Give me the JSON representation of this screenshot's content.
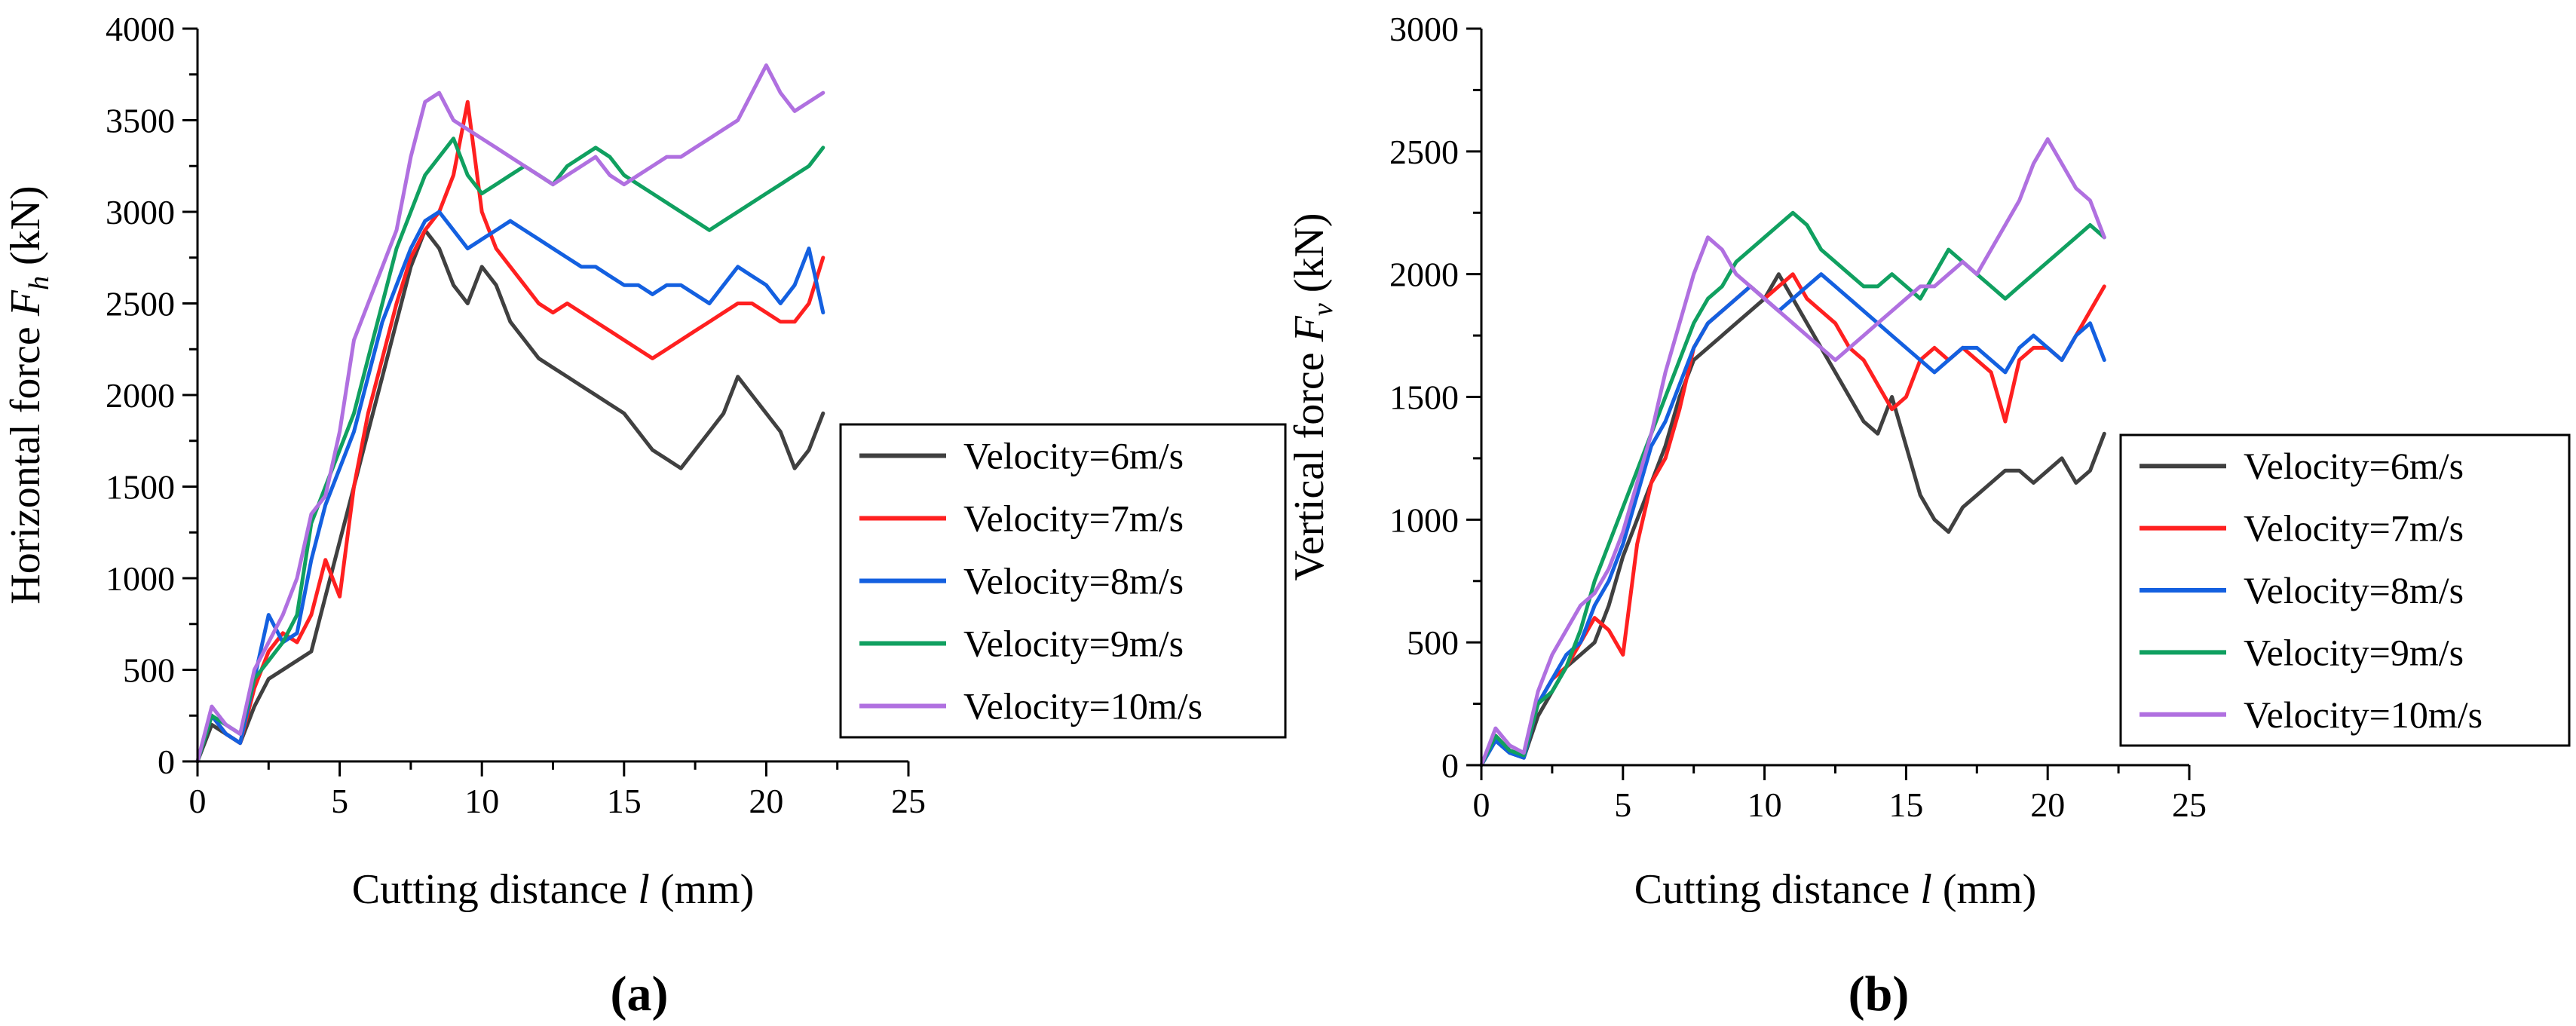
{
  "chart_data": [
    {
      "type": "line",
      "panel_label": "(a)",
      "xlabel": "Cutting distance l (mm)",
      "xlabel_parts": {
        "prefix": "Cutting distance ",
        "var": "l",
        "suffix": " (mm)"
      },
      "ylabel": "Horizontal force F_h (kN)",
      "ylabel_parts": {
        "prefix": "Horizontal force ",
        "var": "F",
        "sub": "h",
        "suffix": " (kN)"
      },
      "xlim": [
        0,
        25
      ],
      "ylim": [
        0,
        4000
      ],
      "xticks": [
        0,
        5,
        10,
        15,
        20,
        25
      ],
      "yticks": [
        0,
        500,
        1000,
        1500,
        2000,
        2500,
        3000,
        3500,
        4000
      ],
      "grid": false,
      "legend_position": "right-middle",
      "series": [
        {
          "name": "Velocity=6m/s",
          "color": "#404040",
          "x": [
            0,
            0.5,
            1,
            1.5,
            2,
            2.5,
            3,
            3.5,
            4,
            4.5,
            5,
            5.5,
            6,
            6.5,
            7,
            7.5,
            8,
            8.5,
            9,
            9.5,
            10,
            10.5,
            11,
            11.5,
            12,
            12.5,
            13,
            13.5,
            14,
            14.5,
            15,
            15.5,
            16,
            16.5,
            17,
            17.5,
            18,
            18.5,
            19,
            19.5,
            20,
            20.5,
            21,
            21.5,
            22
          ],
          "y": [
            0,
            200,
            150,
            100,
            300,
            450,
            500,
            550,
            600,
            900,
            1200,
            1500,
            1800,
            2100,
            2400,
            2700,
            2900,
            2800,
            2600,
            2500,
            2700,
            2600,
            2400,
            2300,
            2200,
            2150,
            2100,
            2050,
            2000,
            1950,
            1900,
            1800,
            1700,
            1650,
            1600,
            1700,
            1800,
            1900,
            2100,
            2000,
            1900,
            1800,
            1600,
            1700,
            1900
          ]
        },
        {
          "name": "Velocity=7m/s",
          "color": "#ff2020",
          "x": [
            0,
            0.5,
            1,
            1.5,
            2,
            2.5,
            3,
            3.5,
            4,
            4.5,
            5,
            5.5,
            6,
            6.5,
            7,
            7.5,
            8,
            8.5,
            9,
            9.5,
            10,
            10.5,
            11,
            11.5,
            12,
            12.5,
            13,
            13.5,
            14,
            14.5,
            15,
            15.5,
            16,
            16.5,
            17,
            17.5,
            18,
            18.5,
            19,
            19.5,
            20,
            20.5,
            21,
            21.5,
            22
          ],
          "y": [
            0,
            250,
            150,
            100,
            400,
            600,
            700,
            650,
            800,
            1100,
            900,
            1500,
            1900,
            2200,
            2500,
            2750,
            2900,
            3000,
            3200,
            3600,
            3000,
            2800,
            2700,
            2600,
            2500,
            2450,
            2500,
            2450,
            2400,
            2350,
            2300,
            2250,
            2200,
            2250,
            2300,
            2350,
            2400,
            2450,
            2500,
            2500,
            2450,
            2400,
            2400,
            2500,
            2750
          ]
        },
        {
          "name": "Velocity=8m/s",
          "color": "#1460e0",
          "x": [
            0,
            0.5,
            1,
            1.5,
            2,
            2.5,
            3,
            3.5,
            4,
            4.5,
            5,
            5.5,
            6,
            6.5,
            7,
            7.5,
            8,
            8.5,
            9,
            9.5,
            10,
            10.5,
            11,
            11.5,
            12,
            12.5,
            13,
            13.5,
            14,
            14.5,
            15,
            15.5,
            16,
            16.5,
            17,
            17.5,
            18,
            18.5,
            19,
            19.5,
            20,
            20.5,
            21,
            21.5,
            22
          ],
          "y": [
            0,
            250,
            150,
            100,
            450,
            800,
            650,
            700,
            1100,
            1400,
            1600,
            1800,
            2100,
            2400,
            2600,
            2800,
            2950,
            3000,
            2900,
            2800,
            2850,
            2900,
            2950,
            2900,
            2850,
            2800,
            2750,
            2700,
            2700,
            2650,
            2600,
            2600,
            2550,
            2600,
            2600,
            2550,
            2500,
            2600,
            2700,
            2650,
            2600,
            2500,
            2600,
            2800,
            2450
          ]
        },
        {
          "name": "Velocity=9m/s",
          "color": "#10a060",
          "x": [
            0,
            0.5,
            1,
            1.5,
            2,
            2.5,
            3,
            3.5,
            4,
            4.5,
            5,
            5.5,
            6,
            6.5,
            7,
            7.5,
            8,
            8.5,
            9,
            9.5,
            10,
            10.5,
            11,
            11.5,
            12,
            12.5,
            13,
            13.5,
            14,
            14.5,
            15,
            15.5,
            16,
            16.5,
            17,
            17.5,
            18,
            18.5,
            19,
            19.5,
            20,
            20.5,
            21,
            21.5,
            22
          ],
          "y": [
            0,
            250,
            200,
            150,
            450,
            550,
            650,
            800,
            1300,
            1500,
            1700,
            1900,
            2200,
            2500,
            2800,
            3000,
            3200,
            3300,
            3400,
            3200,
            3100,
            3150,
            3200,
            3250,
            3200,
            3150,
            3250,
            3300,
            3350,
            3300,
            3200,
            3150,
            3100,
            3050,
            3000,
            2950,
            2900,
            2950,
            3000,
            3050,
            3100,
            3150,
            3200,
            3250,
            3350
          ]
        },
        {
          "name": "Velocity=10m/s",
          "color": "#b070e0",
          "x": [
            0,
            0.5,
            1,
            1.5,
            2,
            2.5,
            3,
            3.5,
            4,
            4.5,
            5,
            5.5,
            6,
            6.5,
            7,
            7.5,
            8,
            8.5,
            9,
            9.5,
            10,
            10.5,
            11,
            11.5,
            12,
            12.5,
            13,
            13.5,
            14,
            14.5,
            15,
            15.5,
            16,
            16.5,
            17,
            17.5,
            18,
            18.5,
            19,
            19.5,
            20,
            20.5,
            21,
            21.5,
            22
          ],
          "y": [
            0,
            300,
            200,
            150,
            500,
            650,
            800,
            1000,
            1350,
            1450,
            1800,
            2300,
            2500,
            2700,
            2900,
            3300,
            3600,
            3650,
            3500,
            3450,
            3400,
            3350,
            3300,
            3250,
            3200,
            3150,
            3200,
            3250,
            3300,
            3200,
            3150,
            3200,
            3250,
            3300,
            3300,
            3350,
            3400,
            3450,
            3500,
            3650,
            3800,
            3650,
            3550,
            3600,
            3650
          ]
        }
      ],
      "legend": [
        "Velocity=6m/s",
        "Velocity=7m/s",
        "Velocity=8m/s",
        "Velocity=9m/s",
        "Velocity=10m/s"
      ]
    },
    {
      "type": "line",
      "panel_label": "(b)",
      "xlabel": "Cutting distance l (mm)",
      "xlabel_parts": {
        "prefix": "Cutting distance ",
        "var": "l",
        "suffix": " (mm)"
      },
      "ylabel": "Vertical force F_v (kN)",
      "ylabel_parts": {
        "prefix": "Vertical force ",
        "var": "F",
        "sub": "v",
        "suffix": " (kN)"
      },
      "xlim": [
        0,
        25
      ],
      "ylim": [
        0,
        3000
      ],
      "xticks": [
        0,
        5,
        10,
        15,
        20,
        25
      ],
      "yticks": [
        0,
        500,
        1000,
        1500,
        2000,
        2500,
        3000
      ],
      "grid": false,
      "legend_position": "right-middle",
      "series": [
        {
          "name": "Velocity=6m/s",
          "color": "#404040",
          "x": [
            0,
            0.5,
            1,
            1.5,
            2,
            2.5,
            3,
            3.5,
            4,
            4.5,
            5,
            5.5,
            6,
            6.5,
            7,
            7.5,
            8,
            8.5,
            9,
            9.5,
            10,
            10.5,
            11,
            11.5,
            12,
            12.5,
            13,
            13.5,
            14,
            14.5,
            15,
            15.5,
            16,
            16.5,
            17,
            17.5,
            18,
            18.5,
            19,
            19.5,
            20,
            20.5,
            21,
            21.5,
            22
          ],
          "y": [
            0,
            100,
            50,
            30,
            200,
            300,
            400,
            450,
            500,
            650,
            850,
            1000,
            1150,
            1300,
            1500,
            1650,
            1700,
            1750,
            1800,
            1850,
            1900,
            2000,
            1900,
            1800,
            1700,
            1600,
            1500,
            1400,
            1350,
            1500,
            1300,
            1100,
            1000,
            950,
            1050,
            1100,
            1150,
            1200,
            1200,
            1150,
            1200,
            1250,
            1150,
            1200,
            1350
          ]
        },
        {
          "name": "Velocity=7m/s",
          "color": "#ff2020",
          "x": [
            0,
            0.5,
            1,
            1.5,
            2,
            2.5,
            3,
            3.5,
            4,
            4.5,
            5,
            5.5,
            6,
            6.5,
            7,
            7.5,
            8,
            8.5,
            9,
            9.5,
            10,
            10.5,
            11,
            11.5,
            12,
            12.5,
            13,
            13.5,
            14,
            14.5,
            15,
            15.5,
            16,
            16.5,
            17,
            17.5,
            18,
            18.5,
            19,
            19.5,
            20,
            20.5,
            21,
            21.5,
            22
          ],
          "y": [
            0,
            120,
            60,
            40,
            250,
            350,
            400,
            500,
            600,
            550,
            450,
            900,
            1150,
            1250,
            1450,
            1700,
            1800,
            1850,
            1900,
            1950,
            1900,
            1950,
            2000,
            1900,
            1850,
            1800,
            1700,
            1650,
            1550,
            1450,
            1500,
            1650,
            1700,
            1650,
            1700,
            1650,
            1600,
            1400,
            1650,
            1700,
            1700,
            1650,
            1750,
            1850,
            1950
          ]
        },
        {
          "name": "Velocity=8m/s",
          "color": "#1460e0",
          "x": [
            0,
            0.5,
            1,
            1.5,
            2,
            2.5,
            3,
            3.5,
            4,
            4.5,
            5,
            5.5,
            6,
            6.5,
            7,
            7.5,
            8,
            8.5,
            9,
            9.5,
            10,
            10.5,
            11,
            11.5,
            12,
            12.5,
            13,
            13.5,
            14,
            14.5,
            15,
            15.5,
            16,
            16.5,
            17,
            17.5,
            18,
            18.5,
            19,
            19.5,
            20,
            20.5,
            21,
            21.5,
            22
          ],
          "y": [
            0,
            100,
            50,
            30,
            250,
            350,
            450,
            500,
            650,
            750,
            900,
            1100,
            1300,
            1400,
            1550,
            1700,
            1800,
            1850,
            1900,
            1950,
            1900,
            1850,
            1900,
            1950,
            2000,
            1950,
            1900,
            1850,
            1800,
            1750,
            1700,
            1650,
            1600,
            1650,
            1700,
            1700,
            1650,
            1600,
            1700,
            1750,
            1700,
            1650,
            1750,
            1800,
            1650
          ]
        },
        {
          "name": "Velocity=9m/s",
          "color": "#10a060",
          "x": [
            0,
            0.5,
            1,
            1.5,
            2,
            2.5,
            3,
            3.5,
            4,
            4.5,
            5,
            5.5,
            6,
            6.5,
            7,
            7.5,
            8,
            8.5,
            9,
            9.5,
            10,
            10.5,
            11,
            11.5,
            12,
            12.5,
            13,
            13.5,
            14,
            14.5,
            15,
            15.5,
            16,
            16.5,
            17,
            17.5,
            18,
            18.5,
            19,
            19.5,
            20,
            20.5,
            21,
            21.5,
            22
          ],
          "y": [
            0,
            120,
            60,
            40,
            250,
            300,
            400,
            550,
            750,
            900,
            1050,
            1200,
            1350,
            1500,
            1650,
            1800,
            1900,
            1950,
            2050,
            2100,
            2150,
            2200,
            2250,
            2200,
            2100,
            2050,
            2000,
            1950,
            1950,
            2000,
            1950,
            1900,
            2000,
            2100,
            2050,
            2000,
            1950,
            1900,
            1950,
            2000,
            2050,
            2100,
            2150,
            2200,
            2150
          ]
        },
        {
          "name": "Velocity=10m/s",
          "color": "#b070e0",
          "x": [
            0,
            0.5,
            1,
            1.5,
            2,
            2.5,
            3,
            3.5,
            4,
            4.5,
            5,
            5.5,
            6,
            6.5,
            7,
            7.5,
            8,
            8.5,
            9,
            9.5,
            10,
            10.5,
            11,
            11.5,
            12,
            12.5,
            13,
            13.5,
            14,
            14.5,
            15,
            15.5,
            16,
            16.5,
            17,
            17.5,
            18,
            18.5,
            19,
            19.5,
            20,
            20.5,
            21,
            21.5,
            22
          ],
          "y": [
            0,
            150,
            80,
            50,
            300,
            450,
            550,
            650,
            700,
            800,
            950,
            1150,
            1350,
            1600,
            1800,
            2000,
            2150,
            2100,
            2000,
            1950,
            1900,
            1850,
            1800,
            1750,
            1700,
            1650,
            1700,
            1750,
            1800,
            1850,
            1900,
            1950,
            1950,
            2000,
            2050,
            2000,
            2100,
            2200,
            2300,
            2450,
            2550,
            2450,
            2350,
            2300,
            2150
          ]
        }
      ],
      "legend": [
        "Velocity=6m/s",
        "Velocity=7m/s",
        "Velocity=8m/s",
        "Velocity=9m/s",
        "Velocity=10m/s"
      ]
    }
  ]
}
